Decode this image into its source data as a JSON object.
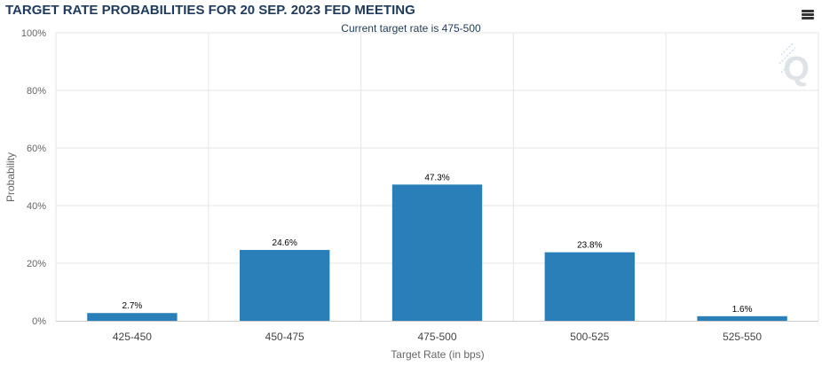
{
  "title": "TARGET RATE PROBABILITIES FOR 20 SEP. 2023 FED MEETING",
  "menu_icon": "hamburger-menu-icon",
  "logo_icon": "q-watermark-logo-icon",
  "colors": {
    "bar": "#2a7fb9",
    "title": "#1f3a5a",
    "grid": "#e6e6e6",
    "axis": "#cccccc"
  },
  "chart_data": {
    "type": "bar",
    "title": "TARGET RATE PROBABILITIES FOR 20 SEP. 2023 FED MEETING",
    "subtitle": "Current target rate is 475-500",
    "xlabel": "Target Rate (in bps)",
    "ylabel": "Probability",
    "categories": [
      "425-450",
      "450-475",
      "475-500",
      "500-525",
      "525-550"
    ],
    "values": [
      2.7,
      24.6,
      47.3,
      23.8,
      1.6
    ],
    "data_labels": [
      "2.7%",
      "24.6%",
      "47.3%",
      "23.8%",
      "1.6%"
    ],
    "ylim": [
      0,
      100
    ],
    "yticks": [
      0,
      20,
      40,
      60,
      80,
      100
    ],
    "ytick_labels": [
      "0%",
      "20%",
      "40%",
      "60%",
      "80%",
      "100%"
    ],
    "grid": true,
    "legend": "none"
  }
}
